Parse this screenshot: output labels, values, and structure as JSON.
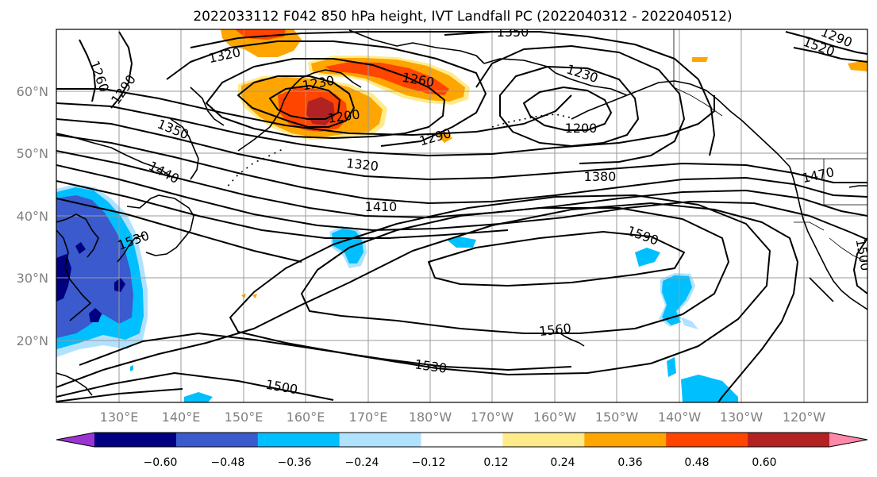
{
  "title": "2022033112 F042 850 hPa height, IVT Landfall PC (2022040312 - 2022040512)",
  "lat_labels": [
    "60°N",
    "50°N",
    "40°N",
    "30°N",
    "20°N"
  ],
  "lon_labels": [
    "130°E",
    "140°E",
    "150°E",
    "160°E",
    "170°E",
    "180°W",
    "170°W",
    "160°W",
    "150°W",
    "140°W",
    "130°W",
    "120°W"
  ],
  "contour_labels": [
    "1350",
    "1320",
    "1260",
    "1290",
    "1230",
    "1260",
    "1200",
    "1230",
    "1200",
    "1350",
    "1290",
    "1320",
    "1440",
    "1380",
    "1410",
    "1470",
    "1530",
    "1590",
    "1500",
    "1560",
    "1530",
    "1500",
    "1520",
    "1290"
  ],
  "colorbar": {
    "ticks": [
      "−0.60",
      "−0.48",
      "−0.36",
      "−0.24",
      "−0.12",
      "0.12",
      "0.24",
      "0.36",
      "0.48",
      "0.60"
    ],
    "colors": [
      "#9a35d0",
      "#000080",
      "#3a5acd",
      "#00bfff",
      "#b0e2ff",
      "#ffffff",
      "#ffeb8a",
      "#ffa500",
      "#ff4500",
      "#b22222",
      "#ff88aa"
    ]
  }
}
